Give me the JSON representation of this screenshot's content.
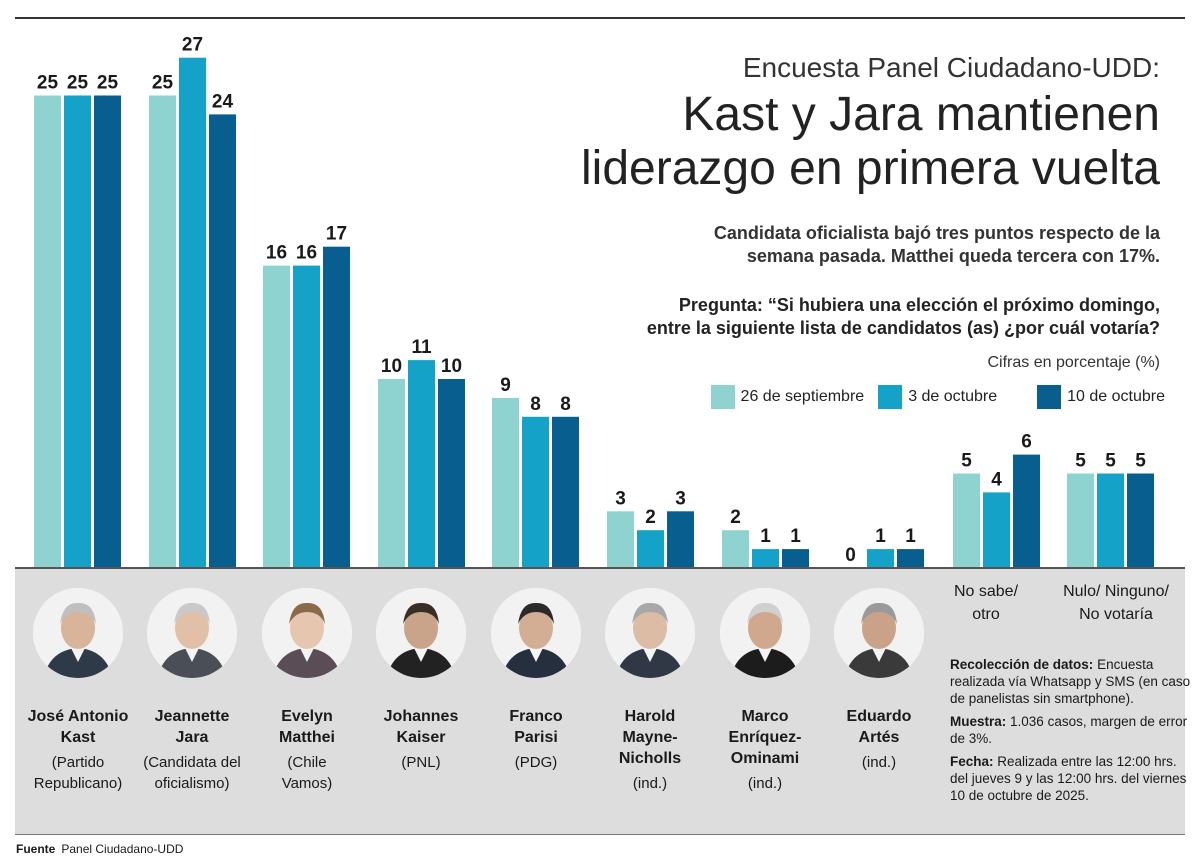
{
  "kicker": "Encuesta Panel Ciudadano-UDD:",
  "title_line1": "Kast y Jara mantienen",
  "title_line2": "liderazgo en primera vuelta",
  "subtitle_line1": "Candidata oficialista bajó tres puntos respecto de la",
  "subtitle_line2": "semana pasada. Matthei queda tercera con 17%.",
  "question_line1": "Pregunta: “Si hubiera una elección el próximo domingo,",
  "question_line2": "entre la siguiente lista de candidatos (as) ¿por cuál votaría?",
  "unit_note": "Cifras en porcentaje (%)",
  "colors": {
    "series1": "#8fd3d0",
    "series2": "#14a2c8",
    "series3": "#075e8f"
  },
  "chart_data": {
    "type": "bar",
    "categories": [
      "José Antonio Kast",
      "Jeannette Jara",
      "Evelyn Matthei",
      "Johannes Kaiser",
      "Franco Parisi",
      "Harold Mayne-Nicholls",
      "Marco Enríquez-Ominami",
      "Eduardo Artés",
      "No sabe/ otro",
      "Nulo/ Ninguno/ No votaría"
    ],
    "series": [
      {
        "name": "26 de septiembre",
        "values": [
          25,
          25,
          16,
          10,
          9,
          3,
          2,
          0,
          5,
          5
        ]
      },
      {
        "name": "3 de octubre",
        "values": [
          25,
          27,
          16,
          11,
          8,
          2,
          1,
          1,
          4,
          5
        ]
      },
      {
        "name": "10 de octubre",
        "values": [
          25,
          24,
          17,
          10,
          8,
          3,
          1,
          1,
          6,
          5
        ]
      }
    ],
    "ylim": [
      0,
      27
    ],
    "grid": false,
    "legend_position": "right"
  },
  "candidates": [
    {
      "name": "José Antonio\nKast",
      "party": "(Partido\nRepublicano)"
    },
    {
      "name": "Jeannette\nJara",
      "party": "(Candidata del\noficialismo)"
    },
    {
      "name": "Evelyn\nMatthei",
      "party": "(Chile\nVamos)"
    },
    {
      "name": "Johannes\nKaiser",
      "party": "(PNL)"
    },
    {
      "name": "Franco\nParisi",
      "party": "(PDG)"
    },
    {
      "name": "Harold\nMayne-\nNicholls",
      "party": "(ind.)"
    },
    {
      "name": "Marco\nEnríquez-\nOminami",
      "party": "(ind.)"
    },
    {
      "name": "Eduardo\nArtés",
      "party": "(ind.)"
    }
  ],
  "extra_labels": [
    "No sabe/\notro",
    "Nulo/ Ninguno/\nNo votaría"
  ],
  "notes": [
    {
      "label": "Recolección de datos:",
      "text": "Encuesta realizada vía Whatsapp y SMS (en caso de panelistas sin smartphone)."
    },
    {
      "label": "Muestra:",
      "text": "1.036 casos, margen de error de 3%."
    },
    {
      "label": "Fecha:",
      "text": "Realizada entre las 12:00 hrs. del jueves 9 y las 12:00 hrs. del viernes 10 de octubre de 2025."
    }
  ],
  "source_label": "Fuente",
  "source_text": "Panel Ciudadano-UDD"
}
